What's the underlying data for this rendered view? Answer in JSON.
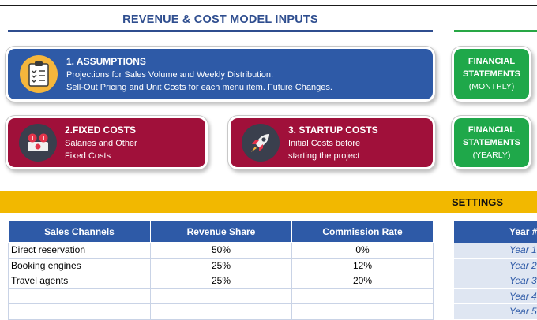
{
  "header": {
    "title": "REVENUE & COST MODEL INPUTS"
  },
  "cards": {
    "assumptions": {
      "title": "1. ASSUMPTIONS",
      "line1": "Projections for Sales Volume and Weekly Distribution.",
      "line2": "Sell-Out Pricing and Unit Costs for each menu item. Future Changes.",
      "icon": "clipboard-checklist-icon"
    },
    "fixed_costs": {
      "title": "2.FIXED COSTS",
      "line1": "Salaries and Other",
      "line2": "Fixed Costs",
      "icon": "money-cash-icon"
    },
    "startup_costs": {
      "title": "3. STARTUP COSTS",
      "line1": "Initial Costs before",
      "line2": "starting the project",
      "icon": "rocket-icon"
    },
    "fin_monthly": {
      "line1": "FINANCIAL",
      "line2": "STATEMENTS",
      "line3": "(MONTHLY)"
    },
    "fin_yearly": {
      "line1": "FINANCIAL",
      "line2": "STATEMENTS",
      "line3": "(YEARLY)"
    }
  },
  "settings": {
    "label": "SETTINGS"
  },
  "channels_table": {
    "headers": [
      "Sales Channels",
      "Revenue Share",
      "Commission Rate"
    ],
    "rows": [
      [
        "Direct reservation",
        "50%",
        "0%"
      ],
      [
        "Booking engines",
        "25%",
        "12%"
      ],
      [
        "Travel agents",
        "25%",
        "20%"
      ],
      [
        "",
        "",
        ""
      ],
      [
        "",
        "",
        ""
      ]
    ]
  },
  "years_table": {
    "header": "Year #",
    "rows": [
      "Year 1",
      "Year 2",
      "Year 3",
      "Year 4",
      "Year 5"
    ]
  },
  "colors": {
    "blue": "#2e5aa7",
    "crimson": "#a0103a",
    "green": "#1fa84a",
    "gold": "#f2b800"
  }
}
